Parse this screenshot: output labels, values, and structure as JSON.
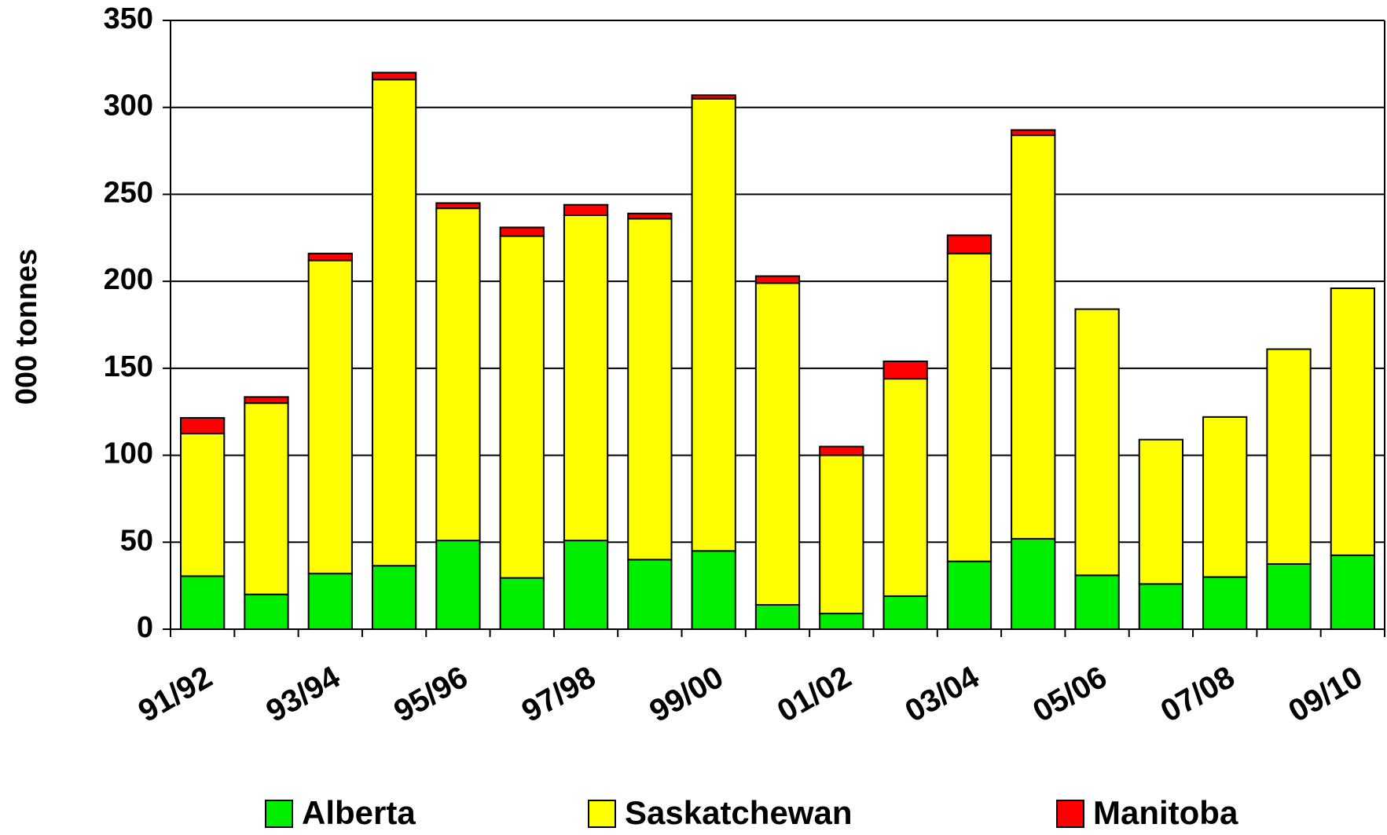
{
  "chart_data": {
    "type": "stacked_bar",
    "y_label": "000 tonnes",
    "categories": [
      "91/92",
      null,
      "93/94",
      null,
      "95/96",
      null,
      "97/98",
      null,
      "99/00",
      null,
      "01/02",
      null,
      "03/04",
      null,
      "05/06",
      null,
      "07/08",
      null,
      "09/10"
    ],
    "series": [
      {
        "name": "Alberta",
        "color": "#00ee00",
        "values": [
          30.5,
          20,
          32,
          36.5,
          51,
          29.5,
          51,
          40,
          45,
          14,
          9,
          19,
          39,
          52,
          31,
          26,
          30,
          37.5,
          42.5
        ]
      },
      {
        "name": "Saskatchewan",
        "color": "#ffff00",
        "values": [
          82,
          110,
          180,
          279.5,
          191,
          196.5,
          187,
          196,
          260,
          185,
          91,
          125,
          177,
          232,
          153,
          83,
          92,
          123.5,
          153.5
        ]
      },
      {
        "name": "Manitoba",
        "color": "#ff0000",
        "values": [
          9,
          3.5,
          4,
          4,
          3,
          5,
          6,
          3,
          2,
          4,
          5,
          10,
          10.5,
          3,
          0,
          0,
          0,
          0,
          0
        ]
      }
    ],
    "ylim": [
      0,
      350
    ],
    "yticks": [
      0,
      50,
      100,
      150,
      200,
      250,
      300,
      350
    ],
    "grid": true,
    "legend": "bottom"
  }
}
